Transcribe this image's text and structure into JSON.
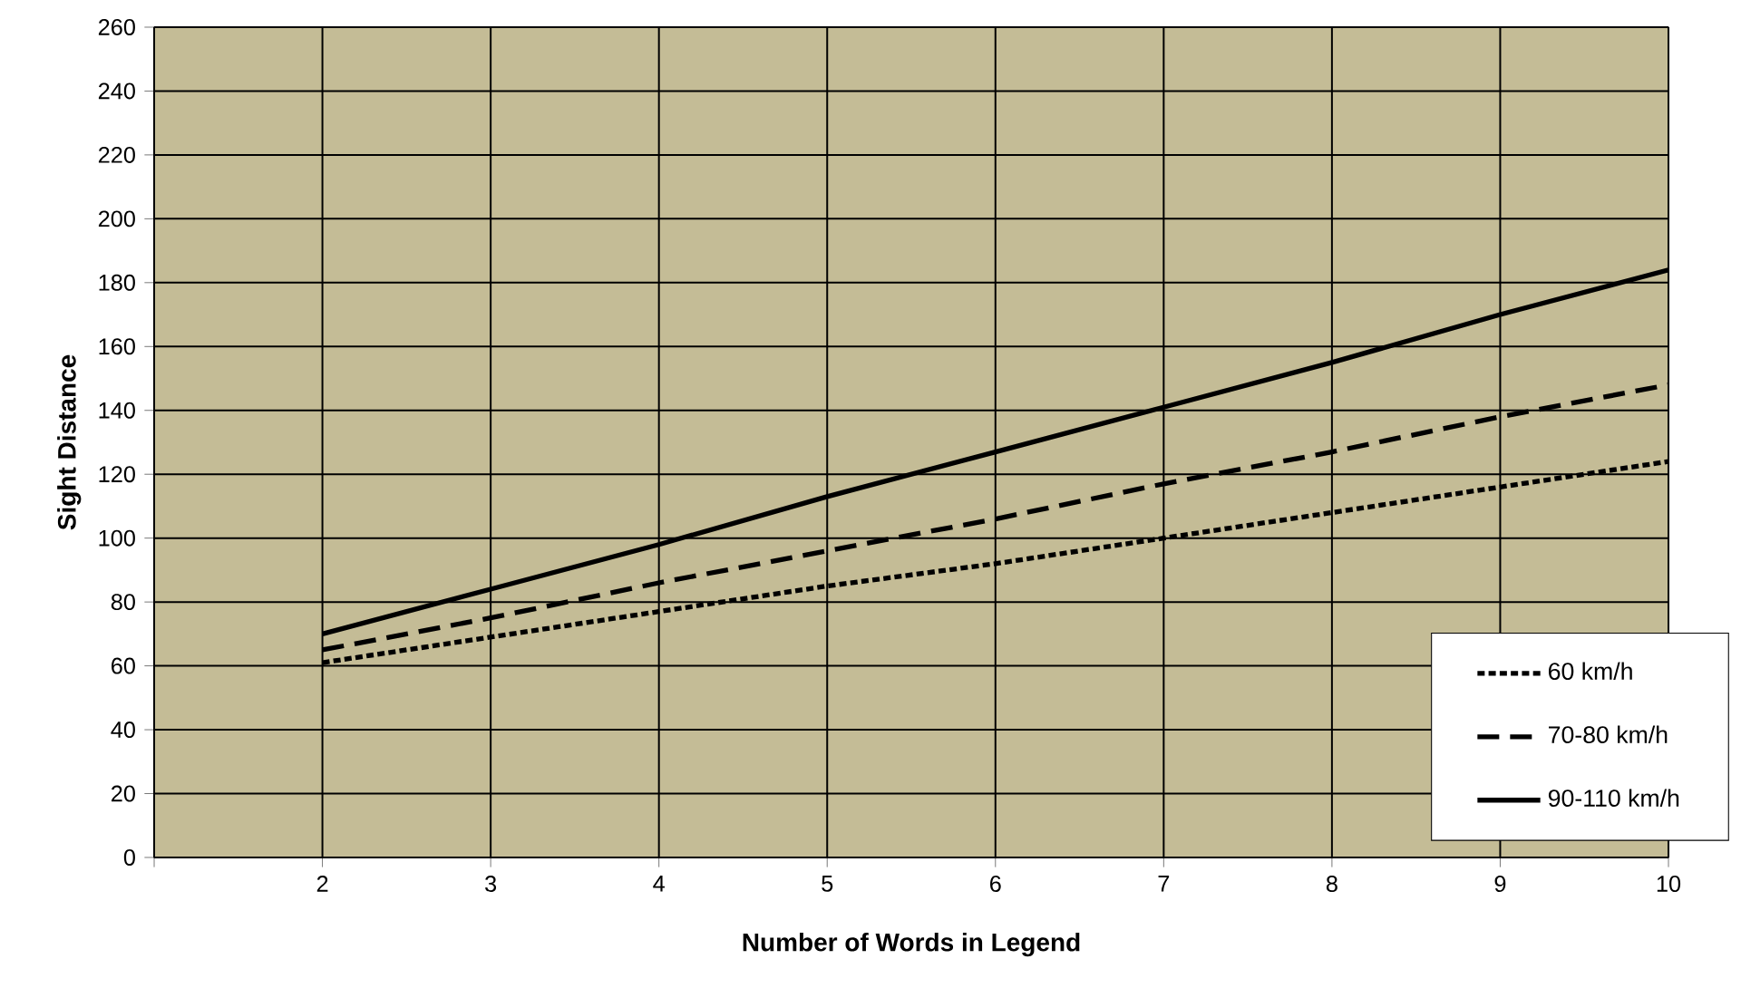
{
  "chart_data": {
    "type": "line",
    "xlabel": "Number of Words in Legend",
    "ylabel": "Sight Distance",
    "x": [
      2,
      3,
      4,
      5,
      6,
      7,
      8,
      9,
      10
    ],
    "series": [
      {
        "name": "60 km/h",
        "color": "#000000",
        "line_style": "dotted",
        "values": [
          61,
          69,
          77,
          85,
          92,
          100,
          108,
          116,
          124
        ]
      },
      {
        "name": "70-80 km/h",
        "color": "#000000",
        "line_style": "dashed",
        "values": [
          65,
          75,
          86,
          96,
          106,
          117,
          127,
          138,
          148
        ]
      },
      {
        "name": "90-110 km/h",
        "color": "#000000",
        "line_style": "solid",
        "values": [
          70,
          84,
          98,
          113,
          127,
          141,
          155,
          170,
          184
        ]
      }
    ],
    "xlim": [
      1,
      10
    ],
    "ylim": [
      0,
      260
    ],
    "xticks": [
      {
        "value": 1,
        "label": null
      },
      2,
      3,
      4,
      5,
      6,
      7,
      8,
      9,
      10
    ],
    "yticks": [
      0,
      20,
      40,
      60,
      80,
      100,
      120,
      140,
      160,
      180,
      200,
      220,
      240,
      260
    ],
    "grid": true,
    "legend": "bottom right",
    "marker": "none"
  }
}
